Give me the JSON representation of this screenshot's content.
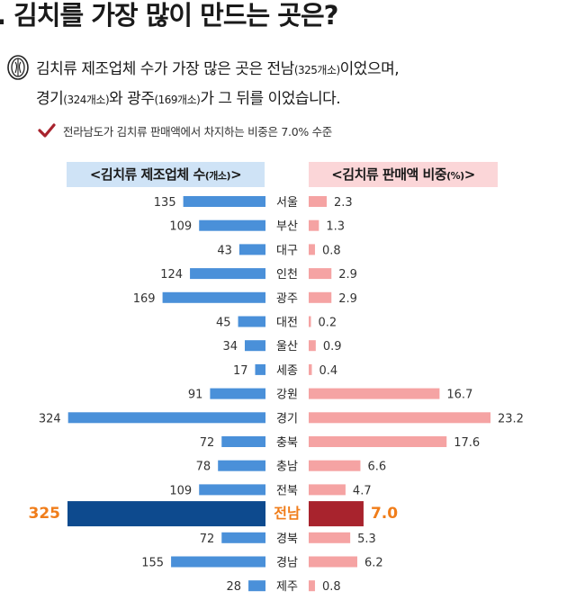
{
  "title": ". 김치를 가장 많이 만드는 곳은?",
  "summary": {
    "line1_text": "김치류 제조업체 수가 가장 많은 곳은 전남",
    "line1_paren": "(325개소)",
    "line1_tail": "이었으며,",
    "line2_a": "경기",
    "line2_paren1": "(324개소)",
    "line2_b": "와 광주",
    "line2_paren2": "(169개소)",
    "line2_c": "가 그 뒤를 이었습니다."
  },
  "note": "전라남도가 김치류 판매액에서 차지하는 비중은 7.0% 수준",
  "colors": {
    "left_bar": "#4a90d9",
    "right_bar": "#f5a3a3",
    "highlight_left": "#0d4a8e",
    "highlight_right": "#a8232d",
    "highlight_text": "#f07d1a",
    "left_header_bg": "#cfe3f6",
    "right_header_bg": "#fbd6d8",
    "check": "#a8232d"
  },
  "chart_data": {
    "type": "bar",
    "orientation": "horizontal-butterfly",
    "categories": [
      "서울",
      "부산",
      "대구",
      "인천",
      "광주",
      "대전",
      "울산",
      "세종",
      "강원",
      "경기",
      "충북",
      "충남",
      "전북",
      "전남",
      "경북",
      "경남",
      "제주"
    ],
    "highlight": "전남",
    "series": [
      {
        "name_main": "<김치류 제조업체 수",
        "name_unit": "(개소)",
        "name_end": ">",
        "values": [
          135,
          109,
          43,
          124,
          169,
          45,
          34,
          17,
          91,
          324,
          72,
          78,
          109,
          325,
          72,
          155,
          28
        ],
        "labels": [
          "135",
          "109",
          "43",
          "124",
          "169",
          "45",
          "34",
          "17",
          "91",
          "324",
          "72",
          "78",
          "109",
          "325",
          "72",
          "155",
          "28"
        ],
        "direction": "left"
      },
      {
        "name_main": "<김치류 판매액 비중",
        "name_unit": "(%)",
        "name_end": ">",
        "values": [
          2.3,
          1.3,
          0.8,
          2.9,
          2.9,
          0.2,
          0.9,
          0.4,
          16.7,
          23.2,
          17.6,
          6.6,
          4.7,
          7.0,
          5.3,
          6.2,
          0.8
        ],
        "labels": [
          "2.3",
          "1.3",
          "0.8",
          "2.9",
          "2.9",
          "0.2",
          "0.9",
          "0.4",
          "16.7",
          "23.2",
          "17.6",
          "6.6",
          "4.7",
          "7.0",
          "5.3",
          "6.2",
          "0.8"
        ],
        "direction": "right"
      }
    ]
  }
}
